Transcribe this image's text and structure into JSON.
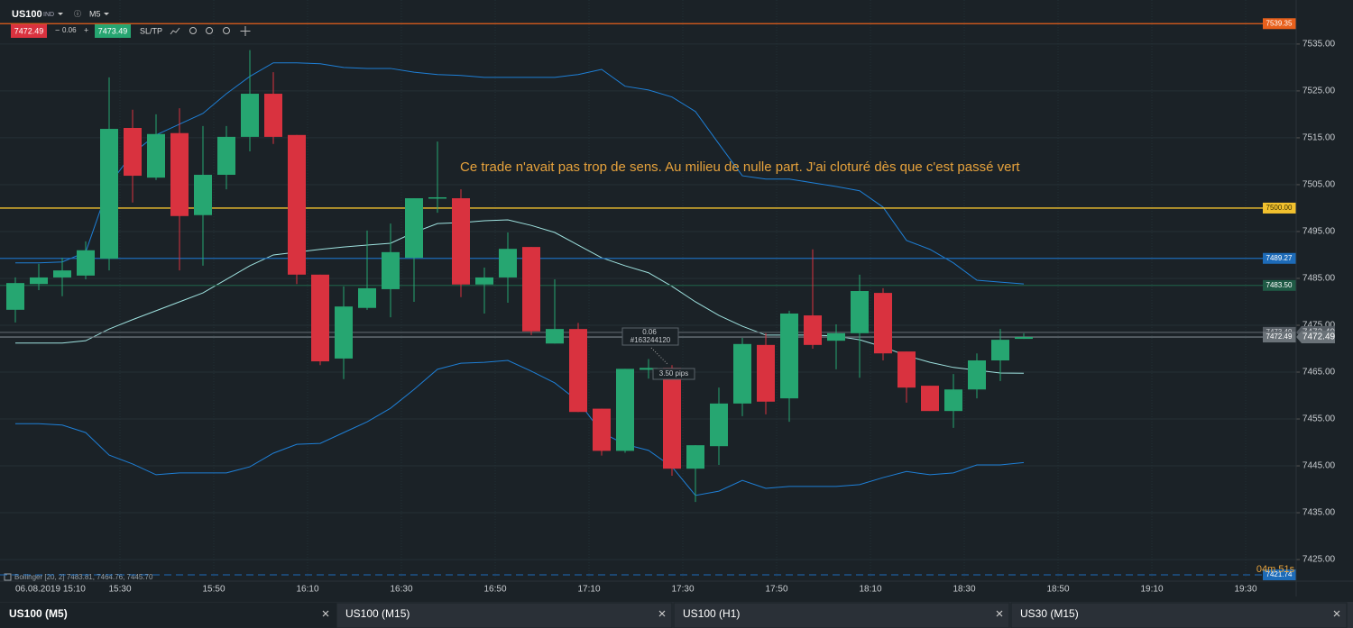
{
  "toolbar": {
    "symbol": "US100",
    "kind": "IND",
    "timeframe": "M5",
    "bid": "7472.49",
    "spread": "0.06",
    "ask": "7473.49",
    "sltp": "SL/TP"
  },
  "chart_data": {
    "type": "candlestick",
    "annotation": "Ce trade n'avait pas trop de sens. Au milieu de nulle part. J'ai cloturé dès que c'est passé vert",
    "xtick_labels": [
      "06.08.2019 15:10",
      "15:30",
      "15:50",
      "16:10",
      "16:30",
      "16:50",
      "17:10",
      "17:30",
      "17:50",
      "18:10",
      "18:30",
      "18:50",
      "19:10",
      "19:30"
    ],
    "up_color": "#26a671",
    "down_color": "#d9323f",
    "open": [
      7478.3,
      7483.8,
      7485.2,
      7485.6,
      7489.2,
      7517.1,
      7506.5,
      7516.0,
      7498.5,
      7507.1,
      7515.2,
      7524.4,
      7515.6,
      7485.8,
      7467.9,
      7478.7,
      7482.7,
      7489.4,
      7502.1,
      7502.1,
      7483.7,
      7485.2,
      7491.7,
      7471.1,
      7474.2,
      7457.2,
      7448.2,
      7465.5,
      7465.9,
      7444.4,
      7449.2,
      7458.3,
      7470.8,
      7459.4,
      7477.1,
      7471.7,
      7473.3,
      7481.9,
      7469.4,
      7462.1,
      7456.7,
      7461.3,
      7467.5,
      7472.1
    ],
    "high": [
      7485.2,
      7488.1,
      7489.4,
      7492.9,
      7527.9,
      7521.0,
      7520.0,
      7521.3,
      7517.5,
      7517.5,
      7533.7,
      7529.0,
      7515.6,
      7485.8,
      7483.3,
      7495.2,
      7496.7,
      7502.1,
      7514.2,
      7504.0,
      7487.3,
      7494.8,
      7491.7,
      7484.8,
      7475.5,
      7457.2,
      7465.7,
      7467.8,
      7466.5,
      7449.4,
      7461.7,
      7472.3,
      7473.3,
      7478.1,
      7491.2,
      7475.2,
      7485.8,
      7482.9,
      7469.4,
      7462.1,
      7464.6,
      7469.0,
      7474.2,
      7473.3
    ],
    "low": [
      7475.6,
      7482.5,
      7481.2,
      7484.8,
      7486.7,
      7501.2,
      7506.0,
      7486.7,
      7487.7,
      7504.0,
      7512.1,
      7513.7,
      7483.8,
      7466.5,
      7463.5,
      7478.3,
      7476.7,
      7480.0,
      7499.0,
      7481.0,
      7477.5,
      7479.8,
      7472.9,
      7471.1,
      7456.5,
      7447.2,
      7447.8,
      7463.6,
      7442.9,
      7437.3,
      7445.2,
      7455.6,
      7456.0,
      7454.4,
      7470.0,
      7465.6,
      7463.8,
      7467.5,
      7458.5,
      7456.7,
      7453.1,
      7459.4,
      7463.1,
      7472.1
    ],
    "close": [
      7484.0,
      7485.2,
      7486.7,
      7491.0,
      7516.9,
      7506.9,
      7515.8,
      7498.3,
      7507.1,
      7515.2,
      7524.4,
      7515.2,
      7485.8,
      7467.3,
      7479.0,
      7482.9,
      7490.6,
      7502.1,
      7502.3,
      7483.7,
      7485.2,
      7491.3,
      7473.7,
      7474.2,
      7456.5,
      7448.2,
      7465.7,
      7465.9,
      7444.4,
      7449.4,
      7458.3,
      7471.0,
      7458.7,
      7477.5,
      7470.8,
      7473.3,
      7482.3,
      7469.0,
      7461.7,
      7456.7,
      7461.3,
      7467.5,
      7471.9,
      7472.49
    ],
    "bollinger": {
      "legend": "Bollinger [20, 2] 7483.81, 7464.76, 7445.70",
      "upper_color": "#1e7fd6",
      "middle_color": "#9fe3e0",
      "lower_color": "#1e7fd6",
      "upper": [
        7488.3,
        7488.3,
        7488.5,
        7490.6,
        7505.0,
        7511.7,
        7515.6,
        7517.9,
        7520.2,
        7524.4,
        7528.1,
        7531.0,
        7531.0,
        7530.8,
        7530.0,
        7529.8,
        7529.8,
        7529.0,
        7528.5,
        7528.3,
        7527.9,
        7527.9,
        7527.9,
        7527.9,
        7528.5,
        7529.6,
        7526.0,
        7525.2,
        7523.7,
        7520.6,
        7513.7,
        7506.9,
        7506.2,
        7506.2,
        7505.4,
        7504.6,
        7503.7,
        7500.2,
        7493.1,
        7491.2,
        7488.3,
        7484.6,
        7484.2,
        7483.81
      ],
      "middle": [
        7471.2,
        7471.2,
        7471.2,
        7471.7,
        7474.2,
        7476.2,
        7478.1,
        7480.0,
        7481.9,
        7484.8,
        7487.7,
        7490.0,
        7490.6,
        7491.2,
        7491.7,
        7492.1,
        7492.5,
        7494.8,
        7496.7,
        7496.9,
        7497.3,
        7497.5,
        7496.3,
        7494.8,
        7492.1,
        7489.4,
        7487.7,
        7486.2,
        7483.3,
        7480.0,
        7477.1,
        7474.8,
        7472.9,
        7472.9,
        7472.9,
        7472.7,
        7471.9,
        7470.4,
        7468.5,
        7467.1,
        7466.0,
        7465.4,
        7464.8,
        7464.76
      ],
      "lower": [
        7454.0,
        7454.0,
        7453.7,
        7452.1,
        7447.3,
        7445.4,
        7443.1,
        7443.5,
        7443.5,
        7443.5,
        7444.8,
        7447.7,
        7449.6,
        7449.8,
        7452.1,
        7454.4,
        7457.3,
        7461.3,
        7465.6,
        7466.9,
        7467.1,
        7467.5,
        7465.2,
        7462.7,
        7458.8,
        7452.1,
        7449.6,
        7448.3,
        7444.8,
        7438.7,
        7439.6,
        7441.9,
        7440.2,
        7440.6,
        7440.6,
        7440.6,
        7441.0,
        7442.5,
        7443.8,
        7443.1,
        7443.5,
        7445.2,
        7445.2,
        7445.7
      ]
    },
    "levels": [
      {
        "value": 7539.35,
        "label": "7539.35",
        "color": "#e8601c",
        "text_color": "#ffffff"
      },
      {
        "value": 7500,
        "label": "7500.00",
        "color": "#f2c12e",
        "text_color": "#3a3000"
      },
      {
        "value": 7489.27,
        "label": "7489.27",
        "color": "#1d6bb8",
        "text_color": "#ffffff"
      },
      {
        "value": 7483.5,
        "label": "7483.50",
        "color": "#1f5a45",
        "text_color": "#ffffff"
      },
      {
        "value": 7473.49,
        "label": "7473.49",
        "color": "#555c63",
        "text_color": "#cfd3d6"
      },
      {
        "value": 7472.49,
        "label": "7472.49",
        "color": "#6a7278",
        "text_color": "#ffffff"
      },
      {
        "value": 7421.74,
        "label": "7421.74",
        "color": "#1d6bb8",
        "text_color": "#ffffff",
        "dashed": true
      }
    ],
    "order": {
      "volume": "0.06",
      "ticket": "#163244120",
      "distance": "3.50 pips"
    },
    "countdown": "04m 51s",
    "ylim": [
      7420.4,
      7544.4
    ],
    "yticks": [
      {
        "value": 7425,
        "label": "7425.00"
      },
      {
        "value": 7435,
        "label": "7435.00"
      },
      {
        "value": 7445,
        "label": "7445.00"
      },
      {
        "value": 7455,
        "label": "7455.00"
      },
      {
        "value": 7465,
        "label": "7465.00"
      },
      {
        "value": 7475,
        "label": "7475.00"
      },
      {
        "value": 7485,
        "label": "7485.00"
      },
      {
        "value": 7495,
        "label": "7495.00"
      },
      {
        "value": 7505,
        "label": "7505.00"
      },
      {
        "value": 7515,
        "label": "7515.00"
      },
      {
        "value": 7525,
        "label": "7525.00"
      },
      {
        "value": 7535,
        "label": "7535.00"
      }
    ],
    "grid": true
  },
  "tabs": [
    "US100 (M5)",
    "US100 (M15)",
    "US100 (H1)",
    "US30 (M15)"
  ]
}
